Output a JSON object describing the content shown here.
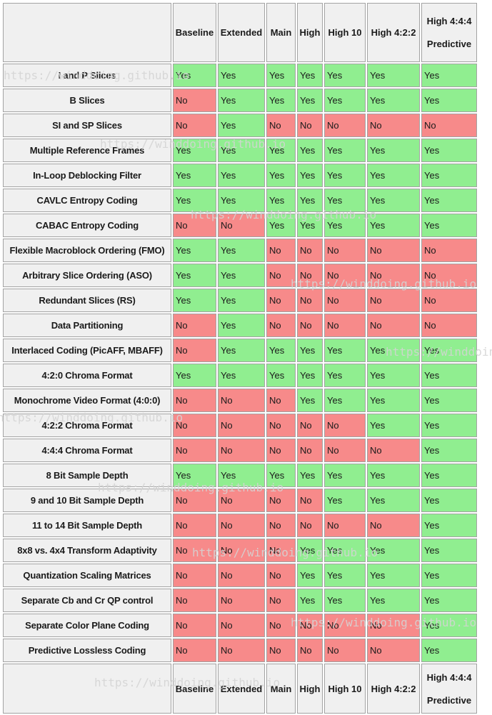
{
  "watermark": {
    "text": "https://winddoing.github.io"
  },
  "colors": {
    "yes_bg": "#90ee90",
    "no_bg": "#f78a8a",
    "header_bg": "#f0f0f0",
    "grid_border": "#a3a3a3",
    "watermark": "#d4d4d4",
    "text": "#1a1a1a"
  },
  "table": {
    "corner_label": "",
    "header_cells": [
      {
        "line1": "Baseline",
        "line2": ""
      },
      {
        "line1": "Extended",
        "line2": ""
      },
      {
        "line1": "Main",
        "line2": ""
      },
      {
        "line1": "High",
        "line2": ""
      },
      {
        "line1": "High 10",
        "line2": ""
      },
      {
        "line1": "High 4:2:2",
        "line2": ""
      },
      {
        "line1": "High 4:4:4",
        "line2": "Predictive"
      }
    ]
  },
  "chart_data": {
    "type": "table",
    "columns": [
      "Baseline",
      "Extended",
      "Main",
      "High",
      "High 10",
      "High 4:2:2",
      "High 4:4:4 Predictive"
    ],
    "cell_semantics": {
      "Yes": "supported (green cell)",
      "No": "not supported (red cell)"
    },
    "rows": [
      {
        "feature": "I and P Slices",
        "values": [
          "Yes",
          "Yes",
          "Yes",
          "Yes",
          "Yes",
          "Yes",
          "Yes"
        ]
      },
      {
        "feature": "B Slices",
        "values": [
          "No",
          "Yes",
          "Yes",
          "Yes",
          "Yes",
          "Yes",
          "Yes"
        ]
      },
      {
        "feature": "SI and SP Slices",
        "values": [
          "No",
          "Yes",
          "No",
          "No",
          "No",
          "No",
          "No"
        ]
      },
      {
        "feature": "Multiple Reference Frames",
        "values": [
          "Yes",
          "Yes",
          "Yes",
          "Yes",
          "Yes",
          "Yes",
          "Yes"
        ]
      },
      {
        "feature": "In-Loop Deblocking Filter",
        "values": [
          "Yes",
          "Yes",
          "Yes",
          "Yes",
          "Yes",
          "Yes",
          "Yes"
        ]
      },
      {
        "feature": "CAVLC Entropy Coding",
        "values": [
          "Yes",
          "Yes",
          "Yes",
          "Yes",
          "Yes",
          "Yes",
          "Yes"
        ]
      },
      {
        "feature": "CABAC Entropy Coding",
        "values": [
          "No",
          "No",
          "Yes",
          "Yes",
          "Yes",
          "Yes",
          "Yes"
        ]
      },
      {
        "feature": "Flexible Macroblock Ordering (FMO)",
        "values": [
          "Yes",
          "Yes",
          "No",
          "No",
          "No",
          "No",
          "No"
        ]
      },
      {
        "feature": "Arbitrary Slice Ordering (ASO)",
        "values": [
          "Yes",
          "Yes",
          "No",
          "No",
          "No",
          "No",
          "No"
        ]
      },
      {
        "feature": "Redundant Slices (RS)",
        "values": [
          "Yes",
          "Yes",
          "No",
          "No",
          "No",
          "No",
          "No"
        ]
      },
      {
        "feature": "Data Partitioning",
        "values": [
          "No",
          "Yes",
          "No",
          "No",
          "No",
          "No",
          "No"
        ]
      },
      {
        "feature": "Interlaced Coding (PicAFF, MBAFF)",
        "values": [
          "No",
          "Yes",
          "Yes",
          "Yes",
          "Yes",
          "Yes",
          "Yes"
        ]
      },
      {
        "feature": "4:2:0 Chroma Format",
        "values": [
          "Yes",
          "Yes",
          "Yes",
          "Yes",
          "Yes",
          "Yes",
          "Yes"
        ]
      },
      {
        "feature": "Monochrome Video Format (4:0:0)",
        "values": [
          "No",
          "No",
          "No",
          "Yes",
          "Yes",
          "Yes",
          "Yes"
        ]
      },
      {
        "feature": "4:2:2 Chroma Format",
        "values": [
          "No",
          "No",
          "No",
          "No",
          "No",
          "Yes",
          "Yes"
        ]
      },
      {
        "feature": "4:4:4 Chroma Format",
        "values": [
          "No",
          "No",
          "No",
          "No",
          "No",
          "No",
          "Yes"
        ]
      },
      {
        "feature": "8 Bit Sample Depth",
        "values": [
          "Yes",
          "Yes",
          "Yes",
          "Yes",
          "Yes",
          "Yes",
          "Yes"
        ]
      },
      {
        "feature": "9 and 10 Bit Sample Depth",
        "values": [
          "No",
          "No",
          "No",
          "No",
          "Yes",
          "Yes",
          "Yes"
        ]
      },
      {
        "feature": "11 to 14 Bit Sample Depth",
        "values": [
          "No",
          "No",
          "No",
          "No",
          "No",
          "No",
          "Yes"
        ]
      },
      {
        "feature": "8x8 vs. 4x4 Transform Adaptivity",
        "values": [
          "No",
          "No",
          "No",
          "Yes",
          "Yes",
          "Yes",
          "Yes"
        ]
      },
      {
        "feature": "Quantization Scaling Matrices",
        "values": [
          "No",
          "No",
          "No",
          "Yes",
          "Yes",
          "Yes",
          "Yes"
        ]
      },
      {
        "feature": "Separate Cb and Cr QP control",
        "values": [
          "No",
          "No",
          "No",
          "Yes",
          "Yes",
          "Yes",
          "Yes"
        ]
      },
      {
        "feature": "Separate Color Plane Coding",
        "values": [
          "No",
          "No",
          "No",
          "No",
          "No",
          "No",
          "Yes"
        ]
      },
      {
        "feature": "Predictive Lossless Coding",
        "values": [
          "No",
          "No",
          "No",
          "No",
          "No",
          "No",
          "Yes"
        ]
      }
    ]
  }
}
